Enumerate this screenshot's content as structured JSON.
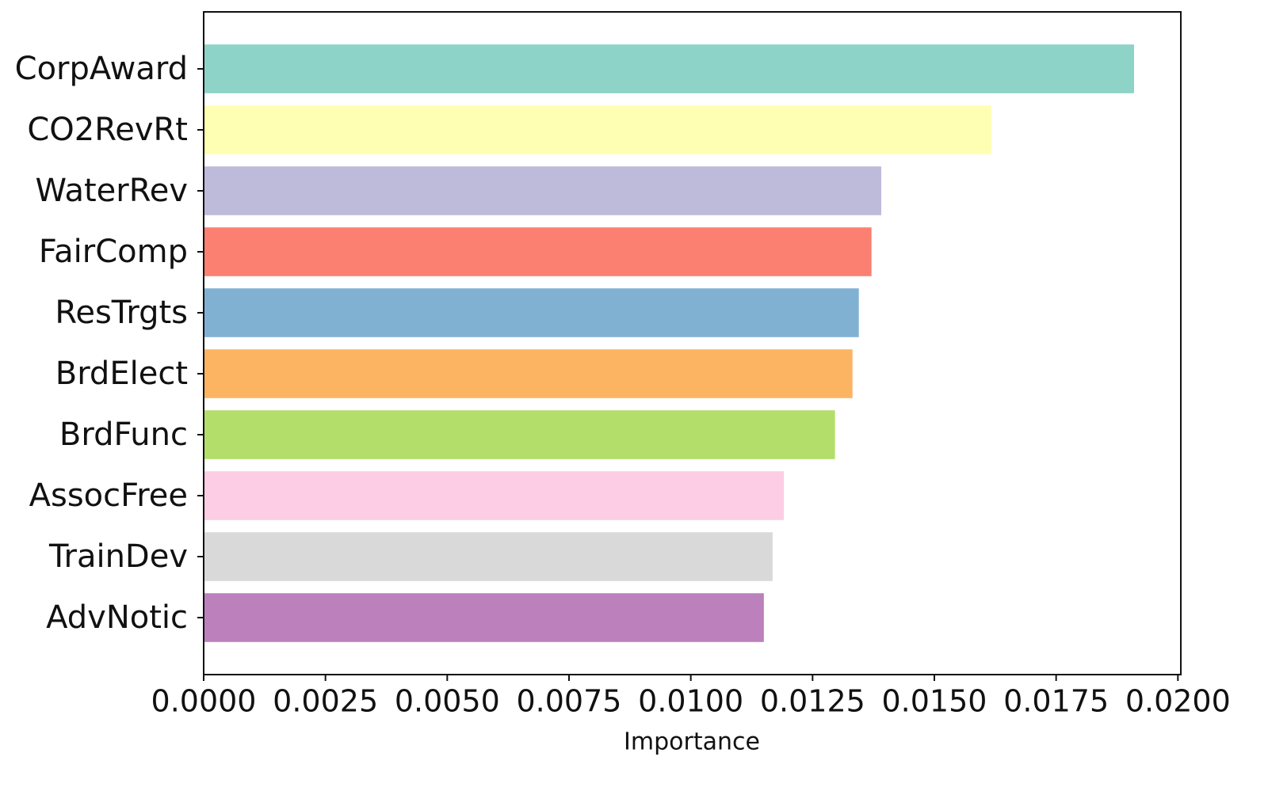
{
  "chart_data": {
    "type": "barh",
    "xlabel": "Importance",
    "categories": [
      "CorpAward",
      "CO2RevRt",
      "WaterRev",
      "FairComp",
      "ResTrgts",
      "BrdElect",
      "BrdFunc",
      "AssocFree",
      "TrainDev",
      "AdvNotic"
    ],
    "values": [
      0.0191,
      0.01617,
      0.01391,
      0.01371,
      0.01345,
      0.01332,
      0.01296,
      0.01191,
      0.01168,
      0.0115
    ],
    "colors": [
      "#8dd3c7",
      "#ffffb3",
      "#bebada",
      "#fb8072",
      "#80b1d3",
      "#fdb462",
      "#b3de69",
      "#fccde5",
      "#d9d9d9",
      "#bc80bd"
    ],
    "xlim": [
      0,
      0.02006
    ],
    "xticks": [
      {
        "value": 0,
        "label": "0.0000"
      },
      {
        "value": 0.0025,
        "label": "0.0025"
      },
      {
        "value": 0.005,
        "label": "0.0050"
      },
      {
        "value": 0.0075,
        "label": "0.0075"
      },
      {
        "value": 0.01,
        "label": "0.0100"
      },
      {
        "value": 0.0125,
        "label": "0.0125"
      },
      {
        "value": 0.015,
        "label": "0.0150"
      },
      {
        "value": 0.0175,
        "label": "0.0175"
      },
      {
        "value": 0.02,
        "label": "0.0200"
      }
    ],
    "grid": false
  }
}
